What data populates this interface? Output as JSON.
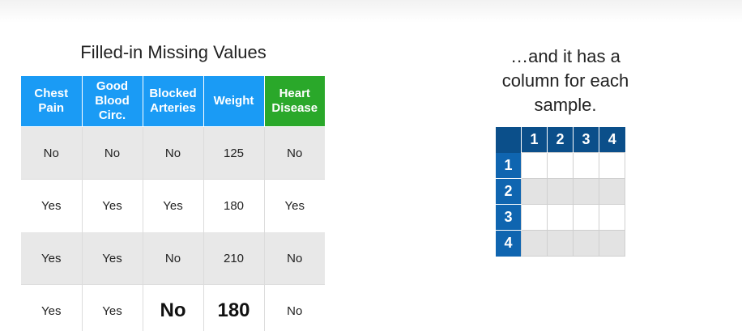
{
  "left": {
    "title": "Filled-in Missing Values",
    "headers": [
      "Chest Pain",
      "Good Blood Circ.",
      "Blocked Arteries",
      "Weight",
      "Heart Disease"
    ],
    "rows": [
      [
        "No",
        "No",
        "No",
        "125",
        "No"
      ],
      [
        "Yes",
        "Yes",
        "Yes",
        "180",
        "Yes"
      ],
      [
        "Yes",
        "Yes",
        "No",
        "210",
        "No"
      ],
      [
        "Yes",
        "Yes",
        "No",
        "180",
        "No"
      ]
    ]
  },
  "right": {
    "caption": "…and it has a column for each sample.",
    "col_headers": [
      "1",
      "2",
      "3",
      "4"
    ],
    "row_headers": [
      "1",
      "2",
      "3",
      "4"
    ]
  },
  "colors": {
    "header_blue": "#1a9bf5",
    "header_green": "#2aa82a",
    "grid_navy": "#0b4f8a",
    "row_shade": "#e8e8e8"
  }
}
